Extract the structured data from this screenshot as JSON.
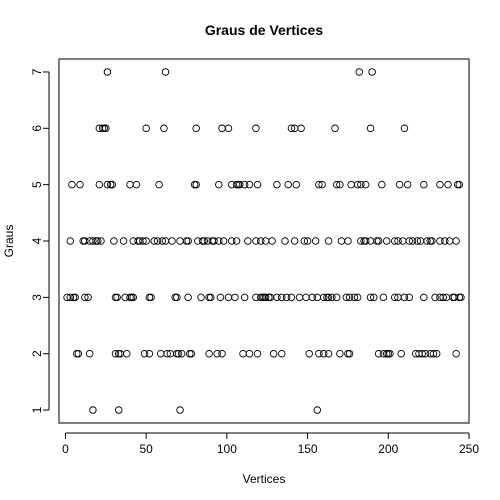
{
  "chart_data": {
    "type": "scatter",
    "title": "Graus de Vertices",
    "xlabel": "Vertices",
    "ylabel": "Graus",
    "xlim": [
      -4,
      250
    ],
    "ylim": [
      0.77,
      7.23
    ],
    "x_ticks": [
      0,
      50,
      100,
      150,
      200,
      250
    ],
    "y_ticks": [
      1,
      2,
      3,
      4,
      5,
      6,
      7
    ],
    "x_tick_labels": [
      "0",
      "50",
      "100",
      "150",
      "200",
      "250"
    ],
    "y_tick_labels": [
      "1",
      "2",
      "3",
      "4",
      "5",
      "6",
      "7"
    ],
    "grid": false,
    "legend": "none",
    "marker": "open-circle",
    "points": [
      [
        26,
        7
      ],
      [
        62,
        7
      ],
      [
        182,
        7
      ],
      [
        190,
        7
      ],
      [
        21,
        6
      ],
      [
        23,
        6
      ],
      [
        24,
        6
      ],
      [
        25,
        6
      ],
      [
        50,
        6
      ],
      [
        61,
        6
      ],
      [
        81,
        6
      ],
      [
        97,
        6
      ],
      [
        101,
        6
      ],
      [
        118,
        6
      ],
      [
        140,
        6
      ],
      [
        142,
        6
      ],
      [
        146,
        6
      ],
      [
        167,
        6
      ],
      [
        189,
        6
      ],
      [
        210,
        6
      ],
      [
        4,
        5
      ],
      [
        9,
        5
      ],
      [
        21,
        5
      ],
      [
        26,
        5
      ],
      [
        28,
        5
      ],
      [
        29,
        5
      ],
      [
        40,
        5
      ],
      [
        44,
        5
      ],
      [
        58,
        5
      ],
      [
        80,
        5
      ],
      [
        81,
        5
      ],
      [
        95,
        5
      ],
      [
        103,
        5
      ],
      [
        106,
        5
      ],
      [
        107,
        5
      ],
      [
        108,
        5
      ],
      [
        111,
        5
      ],
      [
        114,
        5
      ],
      [
        119,
        5
      ],
      [
        131,
        5
      ],
      [
        138,
        5
      ],
      [
        143,
        5
      ],
      [
        157,
        5
      ],
      [
        159,
        5
      ],
      [
        168,
        5
      ],
      [
        170,
        5
      ],
      [
        177,
        5
      ],
      [
        181,
        5
      ],
      [
        183,
        5
      ],
      [
        186,
        5
      ],
      [
        196,
        5
      ],
      [
        207,
        5
      ],
      [
        212,
        5
      ],
      [
        222,
        5
      ],
      [
        232,
        5
      ],
      [
        237,
        5
      ],
      [
        243,
        5
      ],
      [
        244,
        5
      ],
      [
        3,
        4
      ],
      [
        11,
        4
      ],
      [
        12,
        4
      ],
      [
        15,
        4
      ],
      [
        17,
        4
      ],
      [
        19,
        4
      ],
      [
        20,
        4
      ],
      [
        22,
        4
      ],
      [
        30,
        4
      ],
      [
        36,
        4
      ],
      [
        42,
        4
      ],
      [
        45,
        4
      ],
      [
        46,
        4
      ],
      [
        48,
        4
      ],
      [
        50,
        4
      ],
      [
        55,
        4
      ],
      [
        57,
        4
      ],
      [
        60,
        4
      ],
      [
        62,
        4
      ],
      [
        66,
        4
      ],
      [
        71,
        4
      ],
      [
        75,
        4
      ],
      [
        76,
        4
      ],
      [
        82,
        4
      ],
      [
        85,
        4
      ],
      [
        86,
        4
      ],
      [
        88,
        4
      ],
      [
        91,
        4
      ],
      [
        92,
        4
      ],
      [
        95,
        4
      ],
      [
        98,
        4
      ],
      [
        103,
        4
      ],
      [
        106,
        4
      ],
      [
        113,
        4
      ],
      [
        118,
        4
      ],
      [
        121,
        4
      ],
      [
        124,
        4
      ],
      [
        128,
        4
      ],
      [
        136,
        4
      ],
      [
        142,
        4
      ],
      [
        148,
        4
      ],
      [
        150,
        4
      ],
      [
        155,
        4
      ],
      [
        163,
        4
      ],
      [
        171,
        4
      ],
      [
        175,
        4
      ],
      [
        183,
        4
      ],
      [
        185,
        4
      ],
      [
        186,
        4
      ],
      [
        189,
        4
      ],
      [
        193,
        4
      ],
      [
        194,
        4
      ],
      [
        199,
        4
      ],
      [
        204,
        4
      ],
      [
        206,
        4
      ],
      [
        209,
        4
      ],
      [
        213,
        4
      ],
      [
        215,
        4
      ],
      [
        218,
        4
      ],
      [
        220,
        4
      ],
      [
        224,
        4
      ],
      [
        226,
        4
      ],
      [
        227,
        4
      ],
      [
        232,
        4
      ],
      [
        235,
        4
      ],
      [
        238,
        4
      ],
      [
        242,
        4
      ],
      [
        1,
        3
      ],
      [
        3,
        3
      ],
      [
        5,
        3
      ],
      [
        6,
        3
      ],
      [
        12,
        3
      ],
      [
        14,
        3
      ],
      [
        31,
        3
      ],
      [
        32,
        3
      ],
      [
        37,
        3
      ],
      [
        40,
        3
      ],
      [
        41,
        3
      ],
      [
        42,
        3
      ],
      [
        52,
        3
      ],
      [
        53,
        3
      ],
      [
        68,
        3
      ],
      [
        69,
        3
      ],
      [
        76,
        3
      ],
      [
        84,
        3
      ],
      [
        89,
        3
      ],
      [
        90,
        3
      ],
      [
        96,
        3
      ],
      [
        101,
        3
      ],
      [
        105,
        3
      ],
      [
        111,
        3
      ],
      [
        118,
        3
      ],
      [
        121,
        3
      ],
      [
        122,
        3
      ],
      [
        123,
        3
      ],
      [
        124,
        3
      ],
      [
        126,
        3
      ],
      [
        127,
        3
      ],
      [
        131,
        3
      ],
      [
        134,
        3
      ],
      [
        137,
        3
      ],
      [
        140,
        3
      ],
      [
        145,
        3
      ],
      [
        149,
        3
      ],
      [
        153,
        3
      ],
      [
        156,
        3
      ],
      [
        160,
        3
      ],
      [
        162,
        3
      ],
      [
        163,
        3
      ],
      [
        165,
        3
      ],
      [
        168,
        3
      ],
      [
        174,
        3
      ],
      [
        176,
        3
      ],
      [
        179,
        3
      ],
      [
        181,
        3
      ],
      [
        189,
        3
      ],
      [
        191,
        3
      ],
      [
        197,
        3
      ],
      [
        204,
        3
      ],
      [
        206,
        3
      ],
      [
        210,
        3
      ],
      [
        213,
        3
      ],
      [
        222,
        3
      ],
      [
        229,
        3
      ],
      [
        232,
        3
      ],
      [
        234,
        3
      ],
      [
        236,
        3
      ],
      [
        240,
        3
      ],
      [
        241,
        3
      ],
      [
        244,
        3
      ],
      [
        245,
        3
      ],
      [
        7,
        2
      ],
      [
        8,
        2
      ],
      [
        15,
        2
      ],
      [
        31,
        2
      ],
      [
        33,
        2
      ],
      [
        34,
        2
      ],
      [
        38,
        2
      ],
      [
        49,
        2
      ],
      [
        52,
        2
      ],
      [
        59,
        2
      ],
      [
        63,
        2
      ],
      [
        65,
        2
      ],
      [
        69,
        2
      ],
      [
        70,
        2
      ],
      [
        72,
        2
      ],
      [
        77,
        2
      ],
      [
        78,
        2
      ],
      [
        89,
        2
      ],
      [
        94,
        2
      ],
      [
        97,
        2
      ],
      [
        110,
        2
      ],
      [
        114,
        2
      ],
      [
        119,
        2
      ],
      [
        129,
        2
      ],
      [
        134,
        2
      ],
      [
        151,
        2
      ],
      [
        157,
        2
      ],
      [
        160,
        2
      ],
      [
        163,
        2
      ],
      [
        170,
        2
      ],
      [
        175,
        2
      ],
      [
        176,
        2
      ],
      [
        194,
        2
      ],
      [
        197,
        2
      ],
      [
        199,
        2
      ],
      [
        200,
        2
      ],
      [
        201,
        2
      ],
      [
        208,
        2
      ],
      [
        217,
        2
      ],
      [
        219,
        2
      ],
      [
        221,
        2
      ],
      [
        223,
        2
      ],
      [
        226,
        2
      ],
      [
        228,
        2
      ],
      [
        230,
        2
      ],
      [
        242,
        2
      ],
      [
        17,
        1
      ],
      [
        33,
        1
      ],
      [
        71,
        1
      ],
      [
        156,
        1
      ]
    ]
  }
}
